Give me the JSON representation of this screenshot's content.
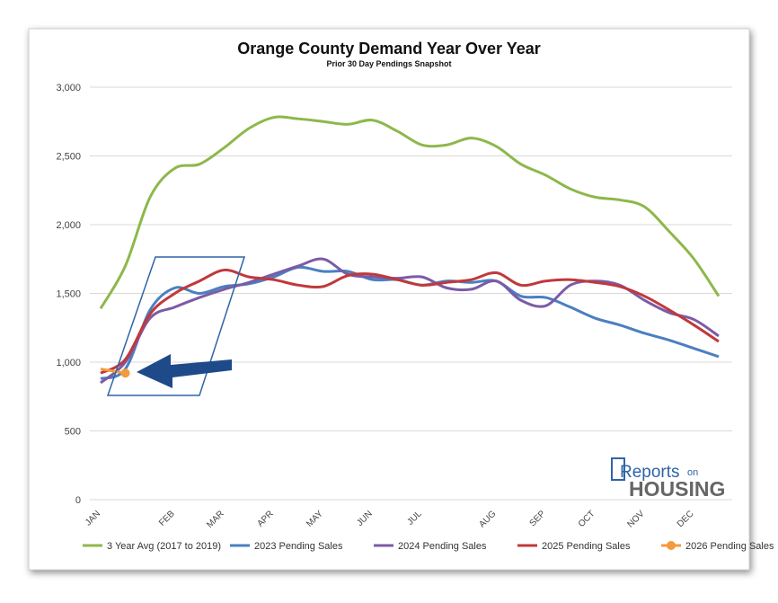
{
  "chart_data": {
    "type": "line",
    "title": "Orange County Demand Year Over Year",
    "subtitle": "Prior 30 Day Pendings Snapshot",
    "categories": [
      "JAN",
      null,
      null,
      "FEB",
      null,
      "MAR",
      null,
      "APR",
      null,
      "MAY",
      null,
      "JUN",
      null,
      "JUL",
      null,
      null,
      "AUG",
      null,
      "SEP",
      null,
      "OCT",
      null,
      "NOV",
      null,
      "DEC",
      null
    ],
    "series": [
      {
        "name": "3 Year Avg (2017 to 2019)",
        "color": "#8db84a",
        "values": [
          1390,
          1700,
          2200,
          2410,
          2440,
          2560,
          2700,
          2780,
          2770,
          2750,
          2730,
          2760,
          2680,
          2580,
          2580,
          2630,
          2570,
          2440,
          2360,
          2260,
          2200,
          2180,
          2130,
          1950,
          1750,
          1480
        ]
      },
      {
        "name": "2023 Pending Sales",
        "color": "#4a7fc1",
        "values": [
          880,
          950,
          1380,
          1540,
          1500,
          1550,
          1570,
          1620,
          1690,
          1660,
          1660,
          1600,
          1600,
          1560,
          1590,
          1580,
          1590,
          1480,
          1470,
          1400,
          1320,
          1270,
          1210,
          1160,
          1100,
          1040
        ]
      },
      {
        "name": "2024 Pending Sales",
        "color": "#7b5ba6",
        "values": [
          850,
          1000,
          1320,
          1400,
          1470,
          1530,
          1580,
          1640,
          1700,
          1750,
          1640,
          1620,
          1610,
          1620,
          1540,
          1530,
          1590,
          1450,
          1410,
          1560,
          1590,
          1560,
          1450,
          1360,
          1310,
          1190
        ]
      },
      {
        "name": "2025 Pending Sales",
        "color": "#c0393b",
        "values": [
          920,
          1020,
          1350,
          1500,
          1590,
          1670,
          1620,
          1600,
          1560,
          1550,
          1630,
          1640,
          1600,
          1560,
          1580,
          1600,
          1650,
          1560,
          1590,
          1600,
          1580,
          1550,
          1480,
          1380,
          1270,
          1150
        ]
      },
      {
        "name": "2026 Pending Sales",
        "color": "#f39a3d",
        "marker": true,
        "values": [
          950,
          920,
          null,
          null,
          null,
          null,
          null,
          null,
          null,
          null,
          null,
          null,
          null,
          null,
          null,
          null,
          null,
          null,
          null,
          null,
          null,
          null,
          null,
          null,
          null,
          null
        ]
      }
    ],
    "ylim": [
      0,
      3000
    ],
    "yticks": [
      0,
      500,
      {
        "value": 1000,
        "label": "1,000"
      },
      {
        "value": 1500,
        "label": "1,500"
      },
      {
        "value": 2000,
        "label": "2,000"
      },
      {
        "value": 2500,
        "label": "2,500"
      },
      {
        "value": 3000,
        "label": "3,000"
      }
    ],
    "grid": true
  },
  "logo": {
    "word1": "Reports",
    "word2": "on",
    "word3": "HOUSING"
  }
}
